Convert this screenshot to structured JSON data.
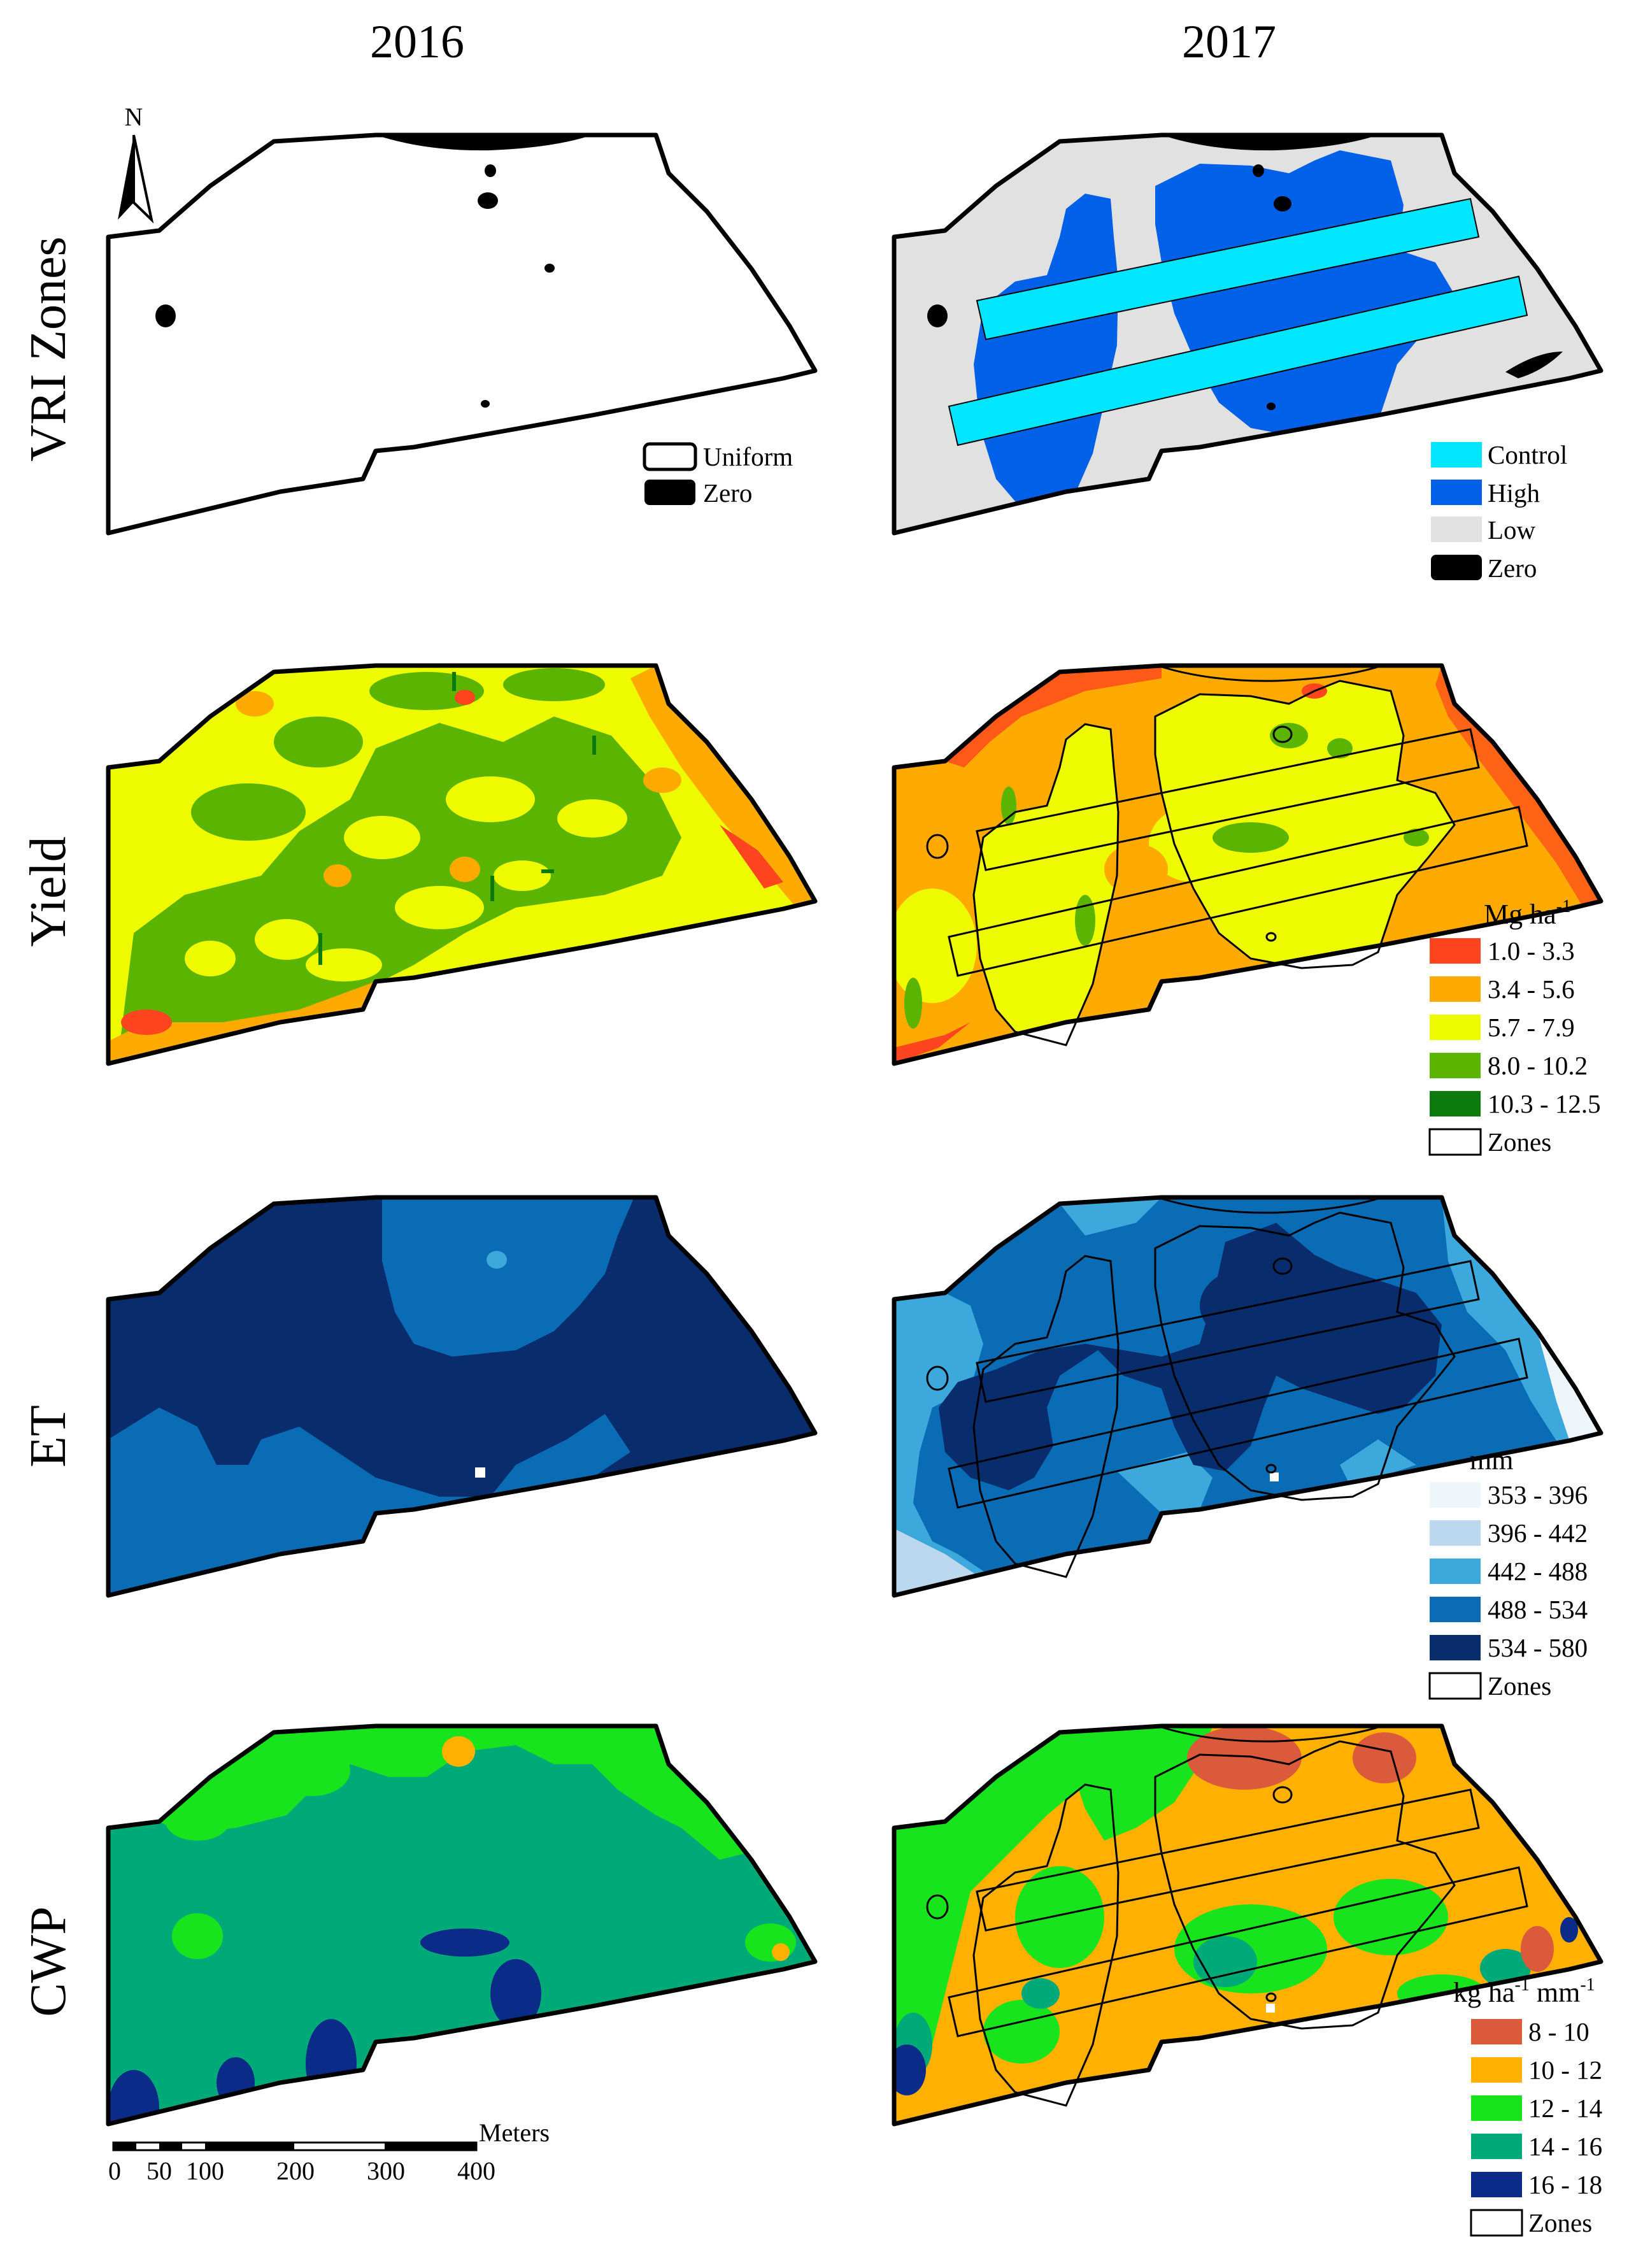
{
  "figure": {
    "columns": [
      "2016",
      "2017"
    ],
    "rows": [
      "VRI Zones",
      "Yield",
      "ET",
      "CWP"
    ]
  },
  "north_arrow": {
    "label": "N"
  },
  "legends": {
    "vri_2016": {
      "items": [
        {
          "label": "Uniform",
          "color": "#ffffff"
        },
        {
          "label": "Zero",
          "color": "#000000"
        }
      ]
    },
    "vri_2017": {
      "items": [
        {
          "label": "Control",
          "color": "#00e6ff"
        },
        {
          "label": "High",
          "color": "#0060e8"
        },
        {
          "label": "Low",
          "color": "#e1e1e1"
        },
        {
          "label": "Zero",
          "color": "#000000"
        }
      ]
    },
    "yield": {
      "unit": "Mg ha",
      "unit_sup": "-1",
      "items": [
        {
          "label": "1.0 - 3.3",
          "color": "#ff4520"
        },
        {
          "label": "3.4 - 5.6",
          "color": "#ffaa00"
        },
        {
          "label": "5.7 - 7.9",
          "color": "#eefa00"
        },
        {
          "label": "8.0 - 10.2",
          "color": "#5ab400"
        },
        {
          "label": "10.3 - 12.5",
          "color": "#0c7a0c"
        },
        {
          "label": "Zones",
          "color": "#ffffff"
        }
      ]
    },
    "et": {
      "unit": "mm",
      "items": [
        {
          "label": "353 - 396",
          "color": "#eef6fc"
        },
        {
          "label": "396 - 442",
          "color": "#bcd8ee"
        },
        {
          "label": "442 - 488",
          "color": "#3ca8dc"
        },
        {
          "label": "488 - 534",
          "color": "#0a6cb4"
        },
        {
          "label": "534 - 580",
          "color": "#082c6c"
        },
        {
          "label": "Zones",
          "color": "#ffffff"
        }
      ]
    },
    "cwp": {
      "unit_parts": [
        "kg ha",
        "-1",
        " mm",
        "-1"
      ],
      "items": [
        {
          "label": "8 - 10",
          "color": "#dc5a3c"
        },
        {
          "label": "10 - 12",
          "color": "#ffb000"
        },
        {
          "label": "12 - 14",
          "color": "#18e41e"
        },
        {
          "label": "14 - 16",
          "color": "#00aa78"
        },
        {
          "label": "16 - 18",
          "color": "#0a2c88"
        },
        {
          "label": "Zones",
          "color": "#ffffff"
        }
      ]
    }
  },
  "scale_bar": {
    "unit": "Meters",
    "ticks": [
      "0",
      "50",
      "100",
      "200",
      "300",
      "400"
    ]
  }
}
